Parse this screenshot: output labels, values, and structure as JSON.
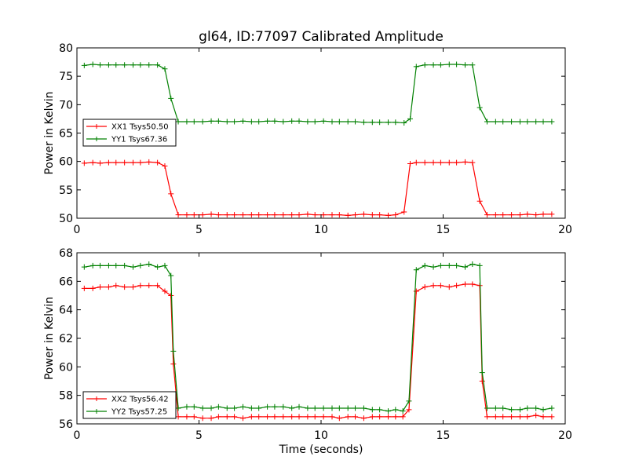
{
  "chart_data": [
    {
      "type": "line",
      "title": "gl64, ID:77097 Calibrated Amplitude",
      "xlabel": "",
      "ylabel": "Power in Kelvin",
      "xlim": [
        0,
        20
      ],
      "ylim": [
        50,
        80
      ],
      "xticks": [
        0,
        5,
        10,
        15,
        20
      ],
      "yticks": [
        50,
        55,
        60,
        65,
        70,
        75,
        80
      ],
      "legend_position": "center-left",
      "x": [
        0.3,
        0.65,
        0.95,
        1.3,
        1.6,
        1.95,
        2.3,
        2.6,
        2.95,
        3.3,
        3.6,
        3.85,
        4.15,
        4.5,
        4.8,
        5.15,
        5.5,
        5.8,
        6.15,
        6.45,
        6.8,
        7.15,
        7.45,
        7.8,
        8.1,
        8.45,
        8.8,
        9.1,
        9.45,
        9.75,
        10.1,
        10.45,
        10.75,
        11.1,
        11.4,
        11.75,
        12.1,
        12.4,
        12.75,
        13.05,
        13.4,
        13.65,
        13.9,
        14.25,
        14.6,
        14.9,
        15.25,
        15.55,
        15.9,
        16.2,
        16.5,
        16.8,
        17.15,
        17.45,
        17.8,
        18.15,
        18.45,
        18.8,
        19.1,
        19.45
      ],
      "series": [
        {
          "name": "XX1 Tsys50.50",
          "color": "#ff0000",
          "values": [
            59.7,
            59.8,
            59.7,
            59.8,
            59.8,
            59.8,
            59.8,
            59.8,
            59.9,
            59.8,
            59.2,
            54.3,
            50.6,
            50.6,
            50.6,
            50.6,
            50.7,
            50.6,
            50.6,
            50.6,
            50.6,
            50.6,
            50.6,
            50.6,
            50.6,
            50.6,
            50.6,
            50.6,
            50.7,
            50.6,
            50.6,
            50.6,
            50.6,
            50.5,
            50.6,
            50.7,
            50.6,
            50.6,
            50.5,
            50.6,
            51.1,
            59.6,
            59.8,
            59.8,
            59.8,
            59.8,
            59.8,
            59.8,
            59.9,
            59.8,
            53.0,
            50.6,
            50.6,
            50.6,
            50.6,
            50.6,
            50.7,
            50.6,
            50.7,
            50.7
          ]
        },
        {
          "name": "YY1 Tsys67.36",
          "color": "#008000",
          "values": [
            76.9,
            77.1,
            77.0,
            77.0,
            77.0,
            77.0,
            77.0,
            77.0,
            77.0,
            77.0,
            76.3,
            71.1,
            67.0,
            67.0,
            67.0,
            67.0,
            67.1,
            67.1,
            67.0,
            67.0,
            67.1,
            67.0,
            67.0,
            67.1,
            67.1,
            67.0,
            67.1,
            67.1,
            67.0,
            67.0,
            67.1,
            67.0,
            67.0,
            67.0,
            67.0,
            66.9,
            66.9,
            66.9,
            66.9,
            66.9,
            66.8,
            67.5,
            76.7,
            77.0,
            77.0,
            77.0,
            77.1,
            77.1,
            77.0,
            77.0,
            69.5,
            67.0,
            67.0,
            67.0,
            67.0,
            67.0,
            67.0,
            67.0,
            67.0,
            67.0
          ]
        }
      ]
    },
    {
      "type": "line",
      "title": "",
      "xlabel": "Time (seconds)",
      "ylabel": "Power in Kelvin",
      "xlim": [
        0,
        20
      ],
      "ylim": [
        56,
        68
      ],
      "xticks": [
        0,
        5,
        10,
        15,
        20
      ],
      "yticks": [
        56,
        58,
        60,
        62,
        64,
        66,
        68
      ],
      "legend_position": "lower-left",
      "x": [
        0.3,
        0.65,
        0.95,
        1.3,
        1.6,
        1.95,
        2.3,
        2.6,
        2.95,
        3.3,
        3.6,
        3.85,
        3.95,
        4.15,
        4.5,
        4.8,
        5.15,
        5.5,
        5.8,
        6.15,
        6.45,
        6.8,
        7.15,
        7.45,
        7.8,
        8.1,
        8.45,
        8.8,
        9.1,
        9.45,
        9.75,
        10.1,
        10.45,
        10.75,
        11.1,
        11.4,
        11.75,
        12.1,
        12.4,
        12.75,
        13.05,
        13.35,
        13.6,
        13.9,
        14.25,
        14.6,
        14.9,
        15.25,
        15.55,
        15.9,
        16.2,
        16.5,
        16.6,
        16.8,
        17.15,
        17.45,
        17.8,
        18.15,
        18.45,
        18.8,
        19.1,
        19.45
      ],
      "series": [
        {
          "name": "XX2 Tsys56.42",
          "color": "#ff0000",
          "values": [
            65.5,
            65.5,
            65.6,
            65.6,
            65.7,
            65.6,
            65.6,
            65.7,
            65.7,
            65.7,
            65.3,
            65.0,
            60.2,
            56.5,
            56.5,
            56.5,
            56.4,
            56.4,
            56.5,
            56.5,
            56.5,
            56.4,
            56.5,
            56.5,
            56.5,
            56.5,
            56.5,
            56.5,
            56.5,
            56.5,
            56.5,
            56.5,
            56.5,
            56.4,
            56.5,
            56.5,
            56.4,
            56.5,
            56.5,
            56.5,
            56.5,
            56.5,
            57.0,
            65.3,
            65.6,
            65.7,
            65.7,
            65.6,
            65.7,
            65.8,
            65.8,
            65.7,
            59.0,
            56.5,
            56.5,
            56.5,
            56.5,
            56.5,
            56.5,
            56.6,
            56.5,
            56.5
          ]
        },
        {
          "name": "YY2 Tsys57.25",
          "color": "#008000",
          "values": [
            67.0,
            67.1,
            67.1,
            67.1,
            67.1,
            67.1,
            67.0,
            67.1,
            67.2,
            67.0,
            67.1,
            66.4,
            61.1,
            57.1,
            57.2,
            57.2,
            57.1,
            57.1,
            57.2,
            57.1,
            57.1,
            57.2,
            57.1,
            57.1,
            57.2,
            57.2,
            57.2,
            57.1,
            57.2,
            57.1,
            57.1,
            57.1,
            57.1,
            57.1,
            57.1,
            57.1,
            57.1,
            57.0,
            57.0,
            56.9,
            57.0,
            56.9,
            57.6,
            66.8,
            67.1,
            67.0,
            67.1,
            67.1,
            67.1,
            67.0,
            67.2,
            67.1,
            59.6,
            57.1,
            57.1,
            57.1,
            57.0,
            57.0,
            57.1,
            57.1,
            57.0,
            57.1
          ]
        }
      ]
    }
  ]
}
